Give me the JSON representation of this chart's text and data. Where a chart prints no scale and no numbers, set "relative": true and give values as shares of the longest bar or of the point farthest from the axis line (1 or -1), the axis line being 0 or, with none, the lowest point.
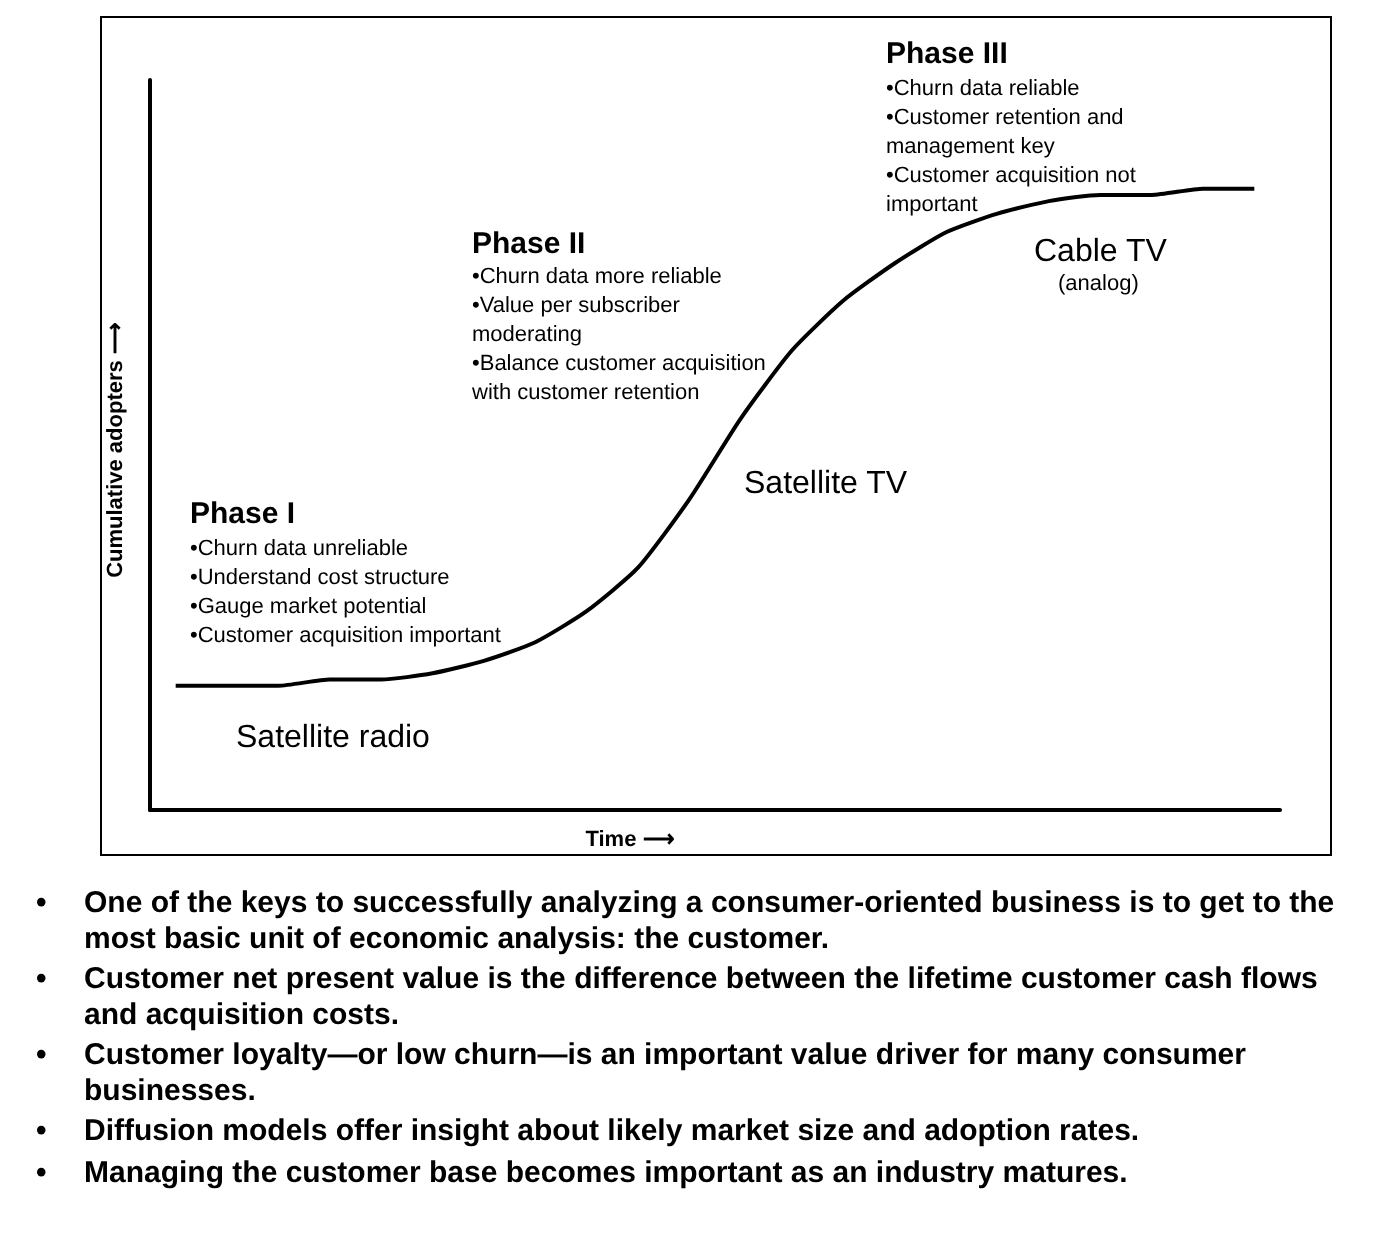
{
  "chart_data": {
    "type": "line",
    "relative": true,
    "xlabel": "Time ⟶",
    "ylabel": "Cumulative adopters ⟶",
    "color": "#000000",
    "marker": "none",
    "grid": false,
    "categories": [
      null,
      null,
      null,
      null,
      null,
      null,
      null,
      null,
      null,
      null,
      null,
      null,
      null,
      null,
      null,
      null,
      null,
      null,
      null,
      null,
      null,
      null
    ],
    "values": [
      0.2,
      0.2,
      0.2,
      0.21,
      0.21,
      0.22,
      0.24,
      0.27,
      0.32,
      0.39,
      0.5,
      0.63,
      0.74,
      0.82,
      0.88,
      0.93,
      0.96,
      0.98,
      0.99,
      0.99,
      1.0,
      1.0
    ],
    "annotations": [
      "Phase I",
      "•Churn data unreliable\n•Understand cost structure\n•Gauge market potential\n•Customer acquisition important",
      "Phase II",
      "•Churn data more reliable\n•Value per subscriber\nmoderating\n•Balance customer acquisition\nwith customer retention",
      "Phase III",
      "•Churn data reliable\n•Customer retention and\nmanagement key\n•Customer acquisition not\nimportant",
      "Satellite radio",
      "Satellite TV",
      "Cable TV",
      "(analog)",
      "• One of the keys to successfully analyzing a consumer-oriented business is to get to the most basic unit of economic analysis: the customer.",
      "• Customer net present value is the difference between the lifetime customer cash flows and acquisition costs.",
      "• Customer loyalty—or low churn—is an important value driver for many consumer businesses.",
      "• Diffusion models offer insight about likely market size and adoption rates.",
      "• Managing the customer base becomes important as an industry matures."
    ]
  }
}
